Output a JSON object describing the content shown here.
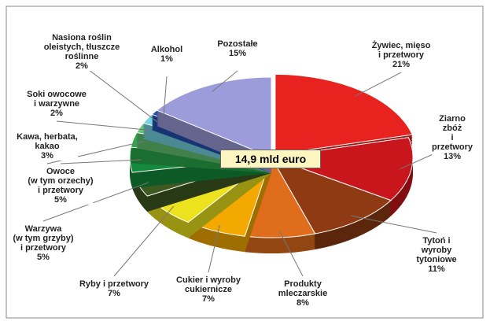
{
  "chart_data": {
    "type": "pie",
    "center_label": "14,9 mld euro",
    "categories": [
      "Żywiec, mięso\ni przetwory",
      "Ziarno zbóż\ni przetwory",
      "Tytoń i wyroby\ntytoniowe",
      "Produkty\nmleczarskie",
      "Cukier i wyroby\ncukiernicze",
      "Ryby i przetwory",
      "Warzywa\n(w tym grzyby)\ni przetwory",
      "Owoce\n(w tym orzechy)\ni przetwory",
      "Kawa, herbata,\nkakao",
      "Soki owocowe\ni warzywne",
      "Nasiona roślin\noleistych, tłuszcze\nroślinne",
      "Alkohol",
      "Pozostałe"
    ],
    "values": [
      21,
      13,
      11,
      8,
      7,
      7,
      5,
      5,
      3,
      2,
      2,
      1,
      15
    ],
    "value_labels": [
      "21%",
      "13%",
      "11%",
      "8%",
      "7%",
      "7%",
      "5%",
      "5%",
      "3%",
      "2%",
      "2%",
      "1%",
      "15%"
    ],
    "colors": [
      "#e8231f",
      "#c8161c",
      "#8e3a12",
      "#e06d1c",
      "#f4a900",
      "#ece21e",
      "#3e5a22",
      "#158a3c",
      "#2aa84a",
      "#64c474",
      "#74d2e2",
      "#2452b4",
      "#9c9cda"
    ]
  }
}
